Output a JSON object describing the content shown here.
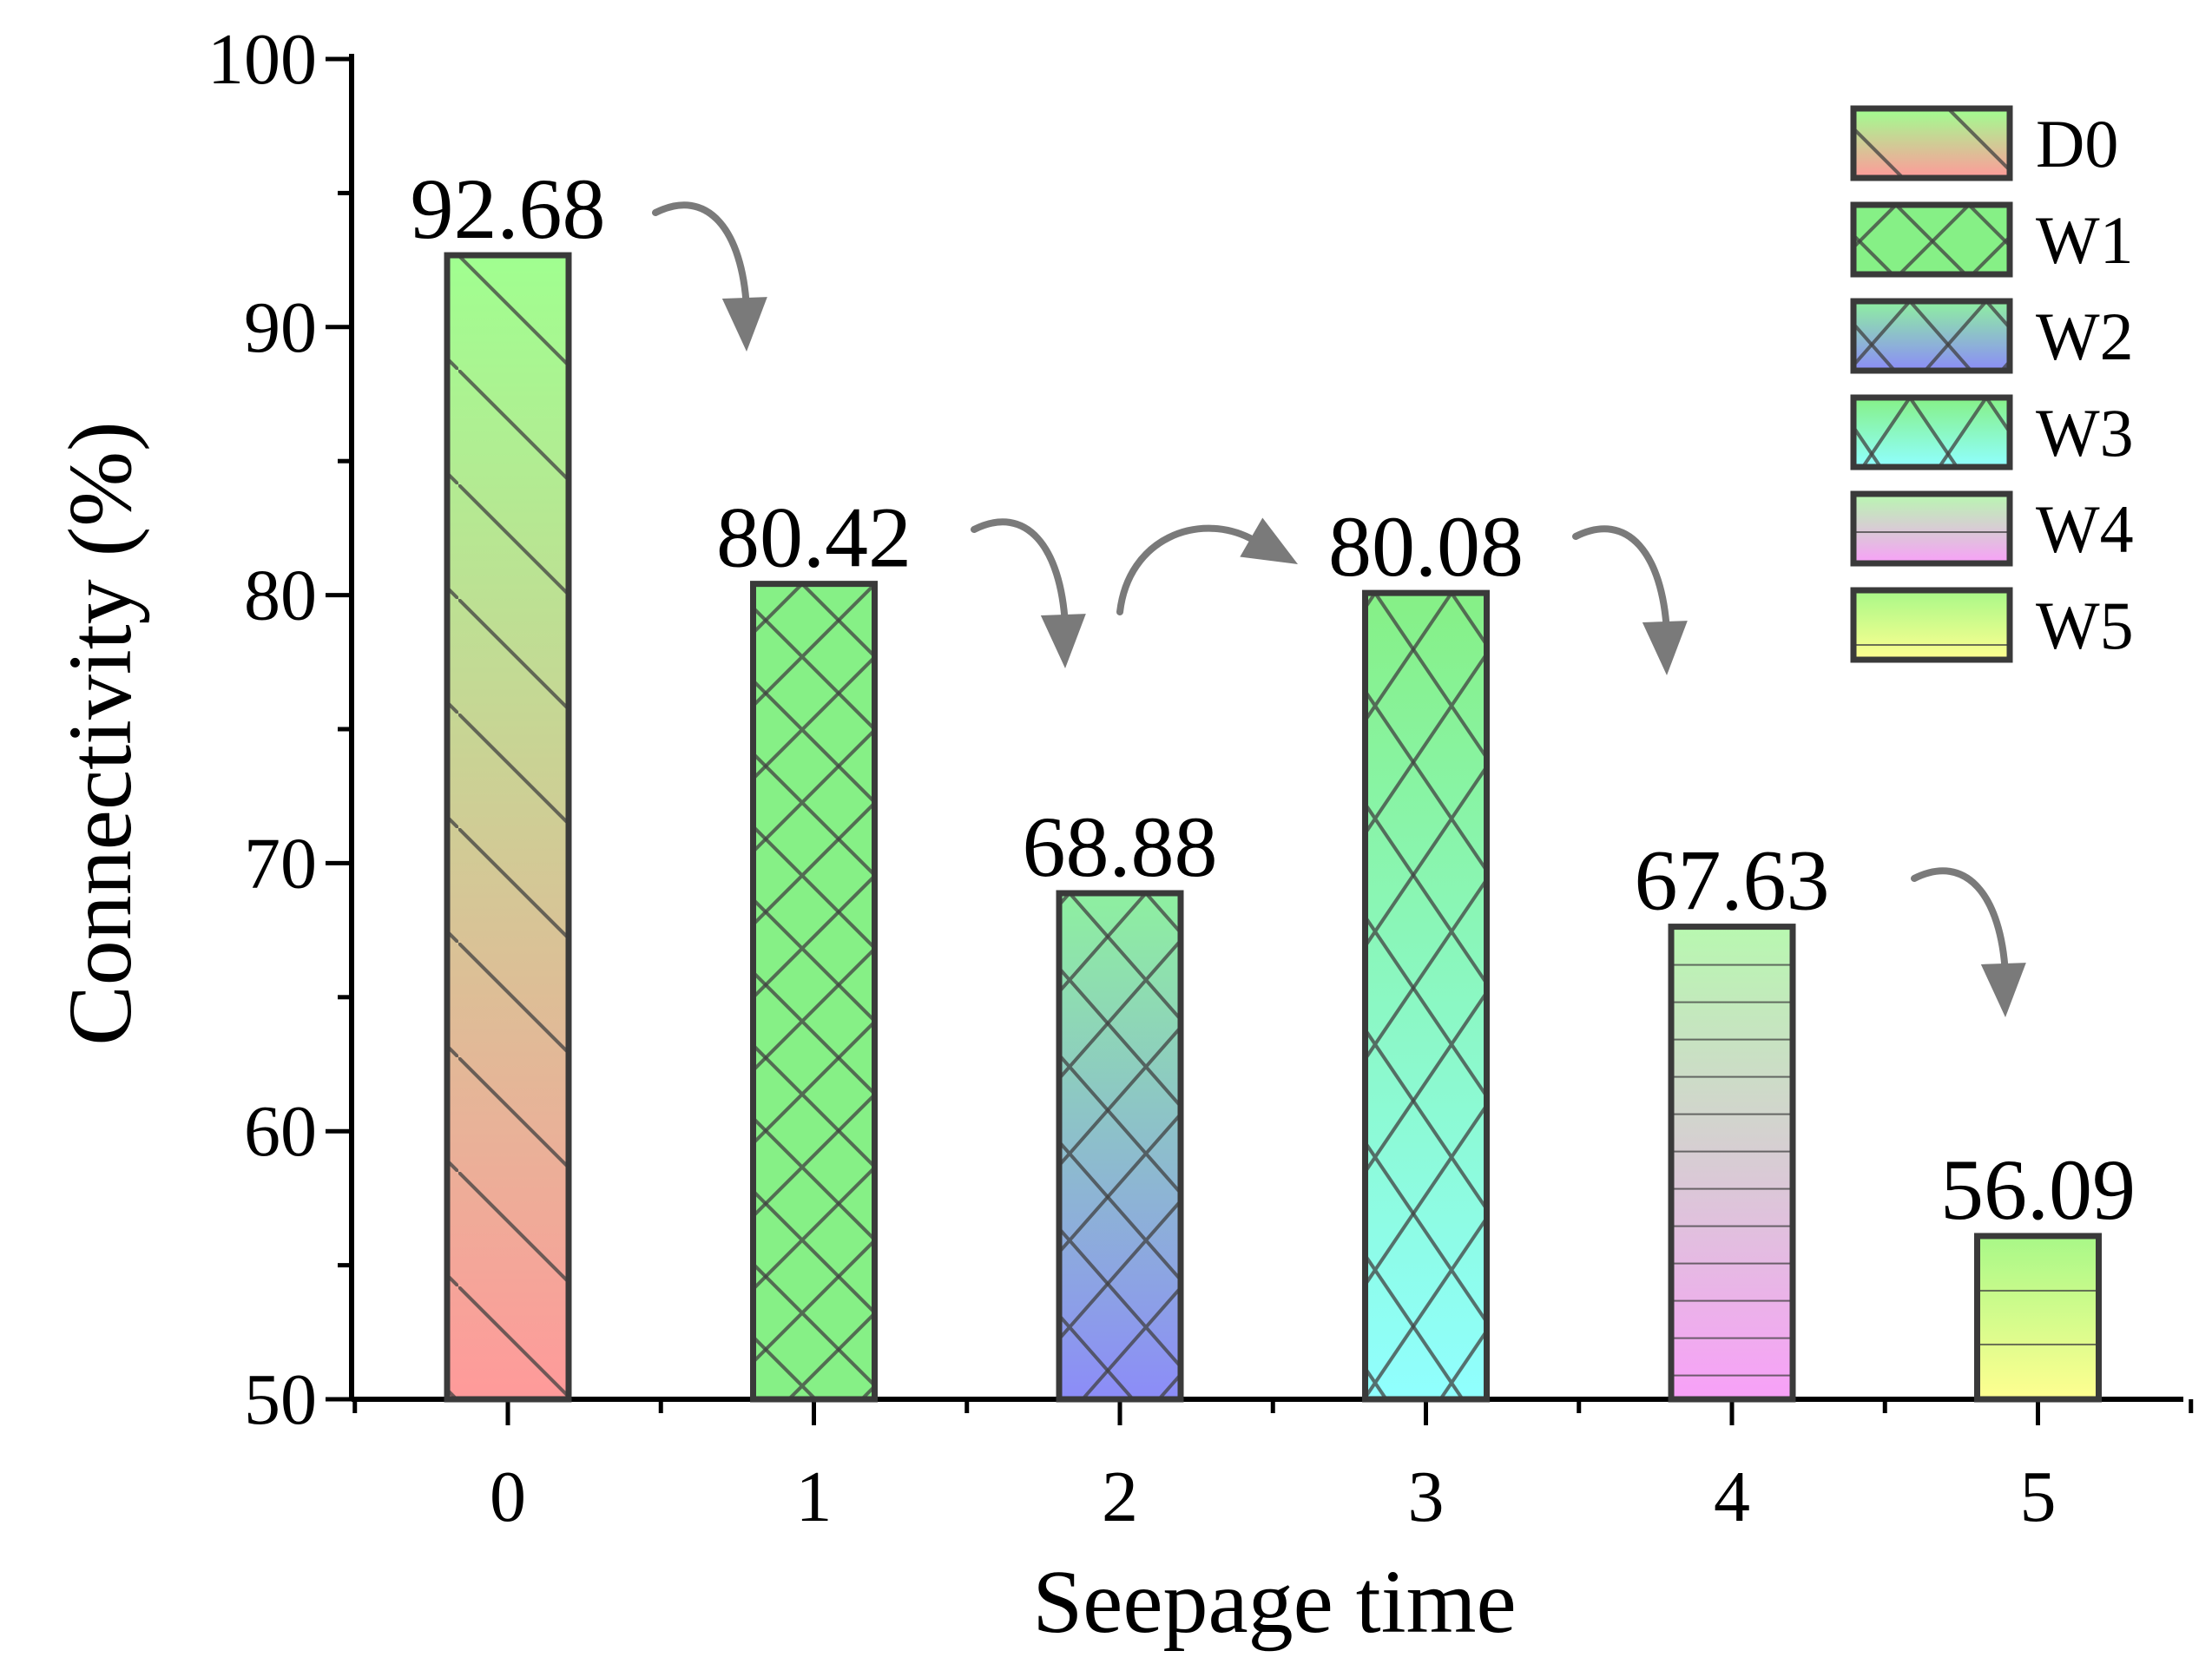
{
  "chart_data": {
    "type": "bar",
    "title": "",
    "xlabel": "Seepage time",
    "ylabel": "Connectivity (%)",
    "categories": [
      "0",
      "1",
      "2",
      "3",
      "4",
      "5"
    ],
    "values": [
      92.68,
      80.42,
      68.88,
      80.08,
      67.63,
      56.09
    ],
    "value_labels": [
      "92.68",
      "80.42",
      "68.88",
      "80.08",
      "67.63",
      "56.09"
    ],
    "series_names": [
      "D0",
      "W1",
      "W2",
      "W3",
      "W4",
      "W5"
    ],
    "ylim": [
      50,
      100
    ],
    "yticks": [
      50,
      60,
      70,
      80,
      90,
      100
    ],
    "ytick_labels": [
      "50",
      "60",
      "70",
      "80",
      "90",
      "100"
    ],
    "grid": false,
    "legend": {
      "position": "top-right",
      "entries": [
        "D0",
        "W1",
        "W2",
        "W3",
        "W4",
        "W5"
      ]
    },
    "annotations": "curved grey arrows indicating trend between consecutive bars",
    "colors": {
      "D0": [
        "#a0ff90",
        "#ff9a9a"
      ],
      "W1": [
        "#86f086",
        "#86f086"
      ],
      "W2": [
        "#8ef0a0",
        "#8c8cf8"
      ],
      "W3": [
        "#86f086",
        "#90ffff"
      ],
      "W4": [
        "#b8f8b0",
        "#f8a0f8"
      ],
      "W5": [
        "#a8f888",
        "#ffff90"
      ],
      "outline": "#3a3a3a",
      "arrow": "#7a7a7a"
    },
    "patterns": [
      "diagonal",
      "crosshatch-dense",
      "crosshatch",
      "crosshatch-wide",
      "horizontal",
      "horizontal-wide"
    ]
  }
}
